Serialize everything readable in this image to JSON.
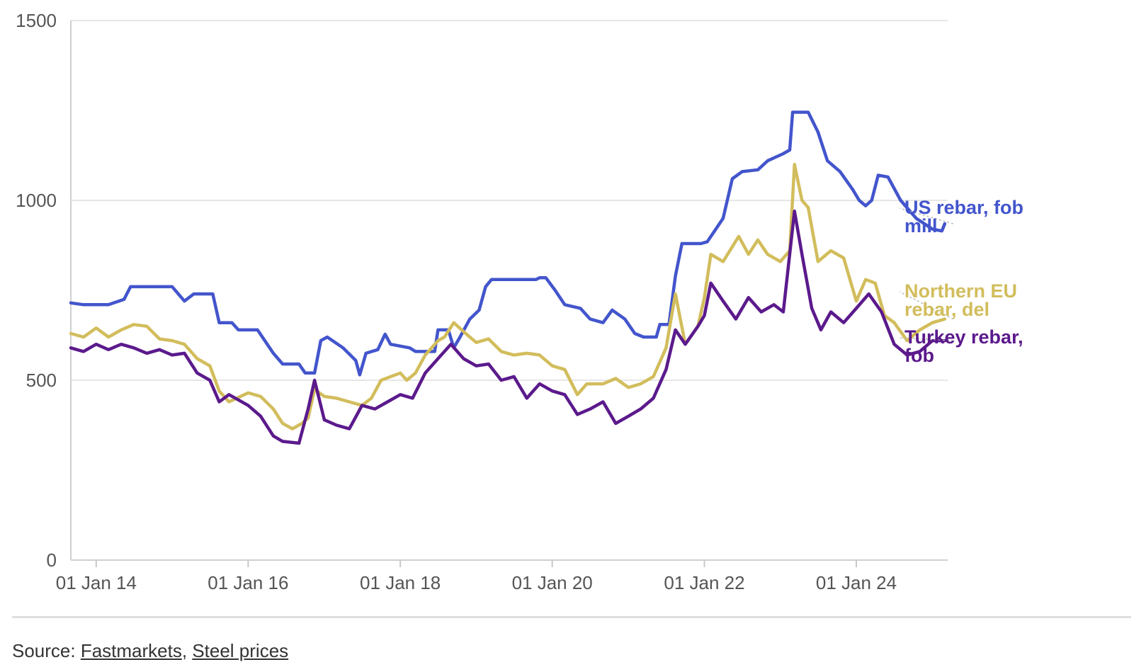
{
  "chart_data": {
    "type": "line",
    "title": "",
    "xlabel": "",
    "ylabel": "",
    "ylim": [
      0,
      1500
    ],
    "yticks": [
      0,
      500,
      1000,
      1500
    ],
    "ytick_labels": [
      "0",
      "500",
      "1000",
      "1500"
    ],
    "xlim": [
      "2013-09-01",
      "2025-03-15"
    ],
    "xticks": [
      "2014-01-01",
      "2016-01-01",
      "2018-01-01",
      "2020-01-01",
      "2022-01-01",
      "2024-01-01"
    ],
    "xtick_labels": [
      "01 Jan 14",
      "01 Jan 16",
      "01 Jan 18",
      "01 Jan 20",
      "01 Jan 22",
      "01 Jan 24"
    ],
    "grid": "horizontal",
    "legend": "end-of-line labels",
    "series": [
      {
        "label_lines": [
          "US rebar, fob",
          "mill"
        ],
        "color": "#4355cc",
        "points": [
          [
            "2013-09-01",
            715
          ],
          [
            "2013-11-01",
            710
          ],
          [
            "2014-03-01",
            710
          ],
          [
            "2014-05-15",
            725
          ],
          [
            "2014-06-15",
            760
          ],
          [
            "2015-01-01",
            760
          ],
          [
            "2015-03-01",
            720
          ],
          [
            "2015-04-15",
            740
          ],
          [
            "2015-07-15",
            740
          ],
          [
            "2015-08-15",
            660
          ],
          [
            "2015-10-15",
            660
          ],
          [
            "2015-11-15",
            640
          ],
          [
            "2016-02-15",
            640
          ],
          [
            "2016-05-01",
            575
          ],
          [
            "2016-06-15",
            545
          ],
          [
            "2016-09-01",
            545
          ],
          [
            "2016-10-01",
            520
          ],
          [
            "2016-11-15",
            520
          ],
          [
            "2016-12-15",
            610
          ],
          [
            "2017-01-15",
            620
          ],
          [
            "2017-04-01",
            590
          ],
          [
            "2017-06-01",
            555
          ],
          [
            "2017-06-20",
            515
          ],
          [
            "2017-07-20",
            575
          ],
          [
            "2017-09-15",
            585
          ],
          [
            "2017-10-20",
            628
          ],
          [
            "2017-11-15",
            600
          ],
          [
            "2018-02-15",
            590
          ],
          [
            "2018-03-15",
            580
          ],
          [
            "2018-06-15",
            580
          ],
          [
            "2018-07-01",
            640
          ],
          [
            "2018-08-20",
            640
          ],
          [
            "2018-09-15",
            590
          ],
          [
            "2018-10-15",
            620
          ],
          [
            "2018-12-01",
            670
          ],
          [
            "2019-01-15",
            695
          ],
          [
            "2019-02-15",
            760
          ],
          [
            "2019-03-15",
            780
          ],
          [
            "2019-10-15",
            780
          ],
          [
            "2019-11-01",
            785
          ],
          [
            "2019-12-01",
            785
          ],
          [
            "2020-01-15",
            750
          ],
          [
            "2020-03-01",
            710
          ],
          [
            "2020-05-15",
            700
          ],
          [
            "2020-07-01",
            670
          ],
          [
            "2020-09-01",
            660
          ],
          [
            "2020-10-15",
            695
          ],
          [
            "2020-12-15",
            670
          ],
          [
            "2021-02-01",
            630
          ],
          [
            "2021-03-15",
            620
          ],
          [
            "2021-05-15",
            620
          ],
          [
            "2021-06-01",
            655
          ],
          [
            "2021-07-15",
            655
          ],
          [
            "2021-08-15",
            790
          ],
          [
            "2021-09-15",
            880
          ],
          [
            "2021-12-15",
            880
          ],
          [
            "2022-01-15",
            885
          ],
          [
            "2022-04-01",
            950
          ],
          [
            "2022-05-15",
            1060
          ],
          [
            "2022-07-01",
            1080
          ],
          [
            "2022-09-15",
            1085
          ],
          [
            "2022-11-01",
            1110
          ],
          [
            "2023-01-15",
            1130
          ],
          [
            "2023-02-15",
            1140
          ],
          [
            "2023-03-01",
            1245
          ],
          [
            "2023-05-15",
            1245
          ],
          [
            "2023-07-01",
            1190
          ],
          [
            "2023-08-15",
            1110
          ],
          [
            "2023-10-15",
            1080
          ],
          [
            "2023-12-15",
            1030
          ],
          [
            "2024-01-15",
            1000
          ],
          [
            "2024-02-15",
            985
          ],
          [
            "2024-03-15",
            1000
          ],
          [
            "2024-04-15",
            1070
          ],
          [
            "2024-06-01",
            1065
          ],
          [
            "2024-08-01",
            1000
          ],
          [
            "2024-10-15",
            950
          ],
          [
            "2025-01-01",
            920
          ],
          [
            "2025-02-15",
            915
          ],
          [
            "2025-03-01",
            935
          ]
        ]
      },
      {
        "label_lines": [
          "Northern EU",
          "rebar, del"
        ],
        "color": "#d2bd5c",
        "points": [
          [
            "2013-09-01",
            630
          ],
          [
            "2013-11-01",
            620
          ],
          [
            "2014-01-01",
            645
          ],
          [
            "2014-03-01",
            620
          ],
          [
            "2014-05-01",
            640
          ],
          [
            "2014-07-01",
            655
          ],
          [
            "2014-09-01",
            650
          ],
          [
            "2014-11-01",
            615
          ],
          [
            "2015-01-01",
            610
          ],
          [
            "2015-03-01",
            600
          ],
          [
            "2015-05-01",
            560
          ],
          [
            "2015-07-01",
            540
          ],
          [
            "2015-08-15",
            470
          ],
          [
            "2015-10-01",
            440
          ],
          [
            "2016-01-01",
            465
          ],
          [
            "2016-03-01",
            455
          ],
          [
            "2016-05-01",
            420
          ],
          [
            "2016-06-15",
            380
          ],
          [
            "2016-08-01",
            365
          ],
          [
            "2016-09-15",
            380
          ],
          [
            "2016-10-15",
            395
          ],
          [
            "2016-11-15",
            475
          ],
          [
            "2017-01-01",
            455
          ],
          [
            "2017-03-01",
            450
          ],
          [
            "2017-05-01",
            440
          ],
          [
            "2017-07-01",
            430
          ],
          [
            "2017-08-15",
            450
          ],
          [
            "2017-10-01",
            500
          ],
          [
            "2018-01-01",
            520
          ],
          [
            "2018-02-01",
            500
          ],
          [
            "2018-03-15",
            520
          ],
          [
            "2018-05-01",
            570
          ],
          [
            "2018-07-01",
            610
          ],
          [
            "2018-08-01",
            620
          ],
          [
            "2018-09-15",
            660
          ],
          [
            "2018-11-01",
            635
          ],
          [
            "2019-01-01",
            605
          ],
          [
            "2019-03-01",
            615
          ],
          [
            "2019-05-01",
            580
          ],
          [
            "2019-07-01",
            570
          ],
          [
            "2019-09-01",
            575
          ],
          [
            "2019-11-01",
            570
          ],
          [
            "2020-01-01",
            540
          ],
          [
            "2020-03-01",
            530
          ],
          [
            "2020-05-01",
            460
          ],
          [
            "2020-06-15",
            490
          ],
          [
            "2020-09-01",
            490
          ],
          [
            "2020-11-01",
            505
          ],
          [
            "2021-01-01",
            480
          ],
          [
            "2021-03-01",
            490
          ],
          [
            "2021-05-01",
            510
          ],
          [
            "2021-07-01",
            590
          ],
          [
            "2021-08-15",
            740
          ],
          [
            "2021-10-01",
            600
          ],
          [
            "2021-12-01",
            650
          ],
          [
            "2022-01-01",
            730
          ],
          [
            "2022-02-01",
            850
          ],
          [
            "2022-04-01",
            830
          ],
          [
            "2022-06-15",
            900
          ],
          [
            "2022-08-01",
            850
          ],
          [
            "2022-09-15",
            890
          ],
          [
            "2022-11-01",
            850
          ],
          [
            "2023-01-01",
            830
          ],
          [
            "2023-02-15",
            860
          ],
          [
            "2023-03-10",
            1100
          ],
          [
            "2023-04-15",
            1000
          ],
          [
            "2023-05-15",
            980
          ],
          [
            "2023-07-01",
            830
          ],
          [
            "2023-09-01",
            860
          ],
          [
            "2023-11-01",
            840
          ],
          [
            "2024-01-01",
            720
          ],
          [
            "2024-02-15",
            780
          ],
          [
            "2024-04-01",
            770
          ],
          [
            "2024-05-15",
            680
          ],
          [
            "2024-07-01",
            660
          ],
          [
            "2024-09-01",
            610
          ],
          [
            "2024-11-01",
            640
          ],
          [
            "2025-01-01",
            660
          ],
          [
            "2025-03-01",
            670
          ]
        ]
      },
      {
        "label_lines": [
          "Turkey rebar,",
          "fob"
        ],
        "color": "#5b1a8c",
        "points": [
          [
            "2013-09-01",
            590
          ],
          [
            "2013-11-01",
            580
          ],
          [
            "2014-01-01",
            600
          ],
          [
            "2014-03-01",
            585
          ],
          [
            "2014-05-01",
            600
          ],
          [
            "2014-07-01",
            590
          ],
          [
            "2014-09-01",
            575
          ],
          [
            "2014-11-01",
            585
          ],
          [
            "2015-01-01",
            570
          ],
          [
            "2015-03-01",
            575
          ],
          [
            "2015-05-01",
            520
          ],
          [
            "2015-07-01",
            500
          ],
          [
            "2015-08-15",
            440
          ],
          [
            "2015-10-01",
            460
          ],
          [
            "2016-01-01",
            430
          ],
          [
            "2016-03-01",
            400
          ],
          [
            "2016-05-01",
            345
          ],
          [
            "2016-06-15",
            330
          ],
          [
            "2016-09-01",
            325
          ],
          [
            "2016-10-15",
            420
          ],
          [
            "2016-11-15",
            500
          ],
          [
            "2017-01-01",
            390
          ],
          [
            "2017-03-01",
            375
          ],
          [
            "2017-05-01",
            365
          ],
          [
            "2017-07-01",
            430
          ],
          [
            "2017-09-01",
            420
          ],
          [
            "2017-11-01",
            440
          ],
          [
            "2018-01-01",
            460
          ],
          [
            "2018-03-01",
            450
          ],
          [
            "2018-05-01",
            520
          ],
          [
            "2018-07-01",
            560
          ],
          [
            "2018-09-01",
            600
          ],
          [
            "2018-11-01",
            560
          ],
          [
            "2019-01-01",
            540
          ],
          [
            "2019-03-01",
            545
          ],
          [
            "2019-05-01",
            500
          ],
          [
            "2019-07-01",
            510
          ],
          [
            "2019-09-01",
            450
          ],
          [
            "2019-11-01",
            490
          ],
          [
            "2020-01-01",
            470
          ],
          [
            "2020-03-01",
            460
          ],
          [
            "2020-05-01",
            405
          ],
          [
            "2020-07-01",
            420
          ],
          [
            "2020-09-01",
            440
          ],
          [
            "2020-11-01",
            380
          ],
          [
            "2021-01-01",
            400
          ],
          [
            "2021-03-01",
            420
          ],
          [
            "2021-05-01",
            450
          ],
          [
            "2021-07-01",
            530
          ],
          [
            "2021-08-15",
            640
          ],
          [
            "2021-10-01",
            600
          ],
          [
            "2021-12-01",
            650
          ],
          [
            "2022-01-01",
            680
          ],
          [
            "2022-02-01",
            770
          ],
          [
            "2022-04-01",
            720
          ],
          [
            "2022-06-01",
            670
          ],
          [
            "2022-08-01",
            730
          ],
          [
            "2022-10-01",
            690
          ],
          [
            "2022-12-01",
            710
          ],
          [
            "2023-01-15",
            690
          ],
          [
            "2023-03-10",
            970
          ],
          [
            "2023-04-15",
            850
          ],
          [
            "2023-06-01",
            700
          ],
          [
            "2023-07-15",
            640
          ],
          [
            "2023-09-01",
            690
          ],
          [
            "2023-11-01",
            660
          ],
          [
            "2024-01-01",
            700
          ],
          [
            "2024-03-01",
            740
          ],
          [
            "2024-05-01",
            690
          ],
          [
            "2024-07-01",
            600
          ],
          [
            "2024-09-01",
            570
          ],
          [
            "2024-11-01",
            580
          ],
          [
            "2025-01-01",
            610
          ],
          [
            "2025-03-01",
            610
          ]
        ]
      }
    ]
  },
  "footer": {
    "source_prefix": "Source: ",
    "source_link1": "Fastmarkets",
    "source_separator": ", ",
    "source_link2": "Steel prices"
  }
}
